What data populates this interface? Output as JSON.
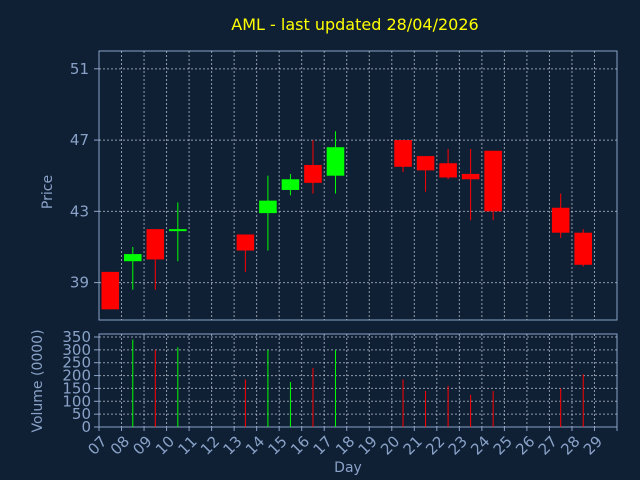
{
  "chart_data": {
    "type": "candlestick",
    "title": "AML - last updated 28/04/2026",
    "xlabel": "Day",
    "price_ylabel": "Price",
    "volume_ylabel": "Volume (0000)",
    "categories": [
      "07",
      "08",
      "09",
      "10",
      "11",
      "12",
      "13",
      "14",
      "15",
      "16",
      "17",
      "18",
      "19",
      "20",
      "21",
      "22",
      "23",
      "24",
      "25",
      "26",
      "27",
      "28",
      "29"
    ],
    "price_ticks": [
      "51",
      "47",
      "43",
      "39"
    ],
    "price_tick_values": [
      51,
      47,
      43,
      39
    ],
    "price_range": [
      36.9,
      52.0
    ],
    "volume_ticks": [
      "350",
      "300",
      "250",
      "200",
      "150",
      "100",
      "50",
      "0"
    ],
    "volume_tick_values": [
      350,
      300,
      250,
      200,
      150,
      100,
      50,
      0
    ],
    "volume_range": [
      0,
      350
    ],
    "grid": true,
    "up_color": "#00ff00",
    "down_color": "#ff0000",
    "candles": [
      {
        "day": "07",
        "open": 39.6,
        "high": 39.6,
        "low": 37.5,
        "close": 37.5,
        "volume": 0
      },
      {
        "day": "08",
        "open": 40.2,
        "high": 41.0,
        "low": 38.6,
        "close": 40.6,
        "volume": 340
      },
      {
        "day": "09",
        "open": 42.0,
        "high": 42.0,
        "low": 38.6,
        "close": 40.3,
        "volume": 300
      },
      {
        "day": "10",
        "open": 41.9,
        "high": 43.5,
        "low": 40.2,
        "close": 42.0,
        "volume": 310
      },
      {
        "day": "13",
        "open": 41.7,
        "high": 41.7,
        "low": 39.6,
        "close": 40.8,
        "volume": 185
      },
      {
        "day": "14",
        "open": 42.9,
        "high": 45.0,
        "low": 40.8,
        "close": 43.6,
        "volume": 300
      },
      {
        "day": "15",
        "open": 44.2,
        "high": 45.1,
        "low": 43.9,
        "close": 44.8,
        "volume": 175
      },
      {
        "day": "16",
        "open": 45.6,
        "high": 47.0,
        "low": 44.0,
        "close": 44.6,
        "volume": 230
      },
      {
        "day": "17",
        "open": 45.0,
        "high": 47.5,
        "low": 44.0,
        "close": 46.6,
        "volume": 300
      },
      {
        "day": "20",
        "open": 47.0,
        "high": 47.0,
        "low": 45.2,
        "close": 45.5,
        "volume": 185
      },
      {
        "day": "21",
        "open": 46.1,
        "high": 46.1,
        "low": 44.1,
        "close": 45.3,
        "volume": 140
      },
      {
        "day": "22",
        "open": 45.7,
        "high": 46.5,
        "low": 44.8,
        "close": 44.9,
        "volume": 160
      },
      {
        "day": "23",
        "open": 45.1,
        "high": 46.5,
        "low": 42.5,
        "close": 44.8,
        "volume": 125
      },
      {
        "day": "24",
        "open": 46.4,
        "high": 46.4,
        "low": 42.5,
        "close": 43.0,
        "volume": 140
      },
      {
        "day": "27",
        "open": 43.2,
        "high": 44.0,
        "low": 41.5,
        "close": 41.8,
        "volume": 150
      },
      {
        "day": "28",
        "open": 41.8,
        "high": 42.0,
        "low": 39.9,
        "close": 40.0,
        "volume": 205
      }
    ]
  }
}
